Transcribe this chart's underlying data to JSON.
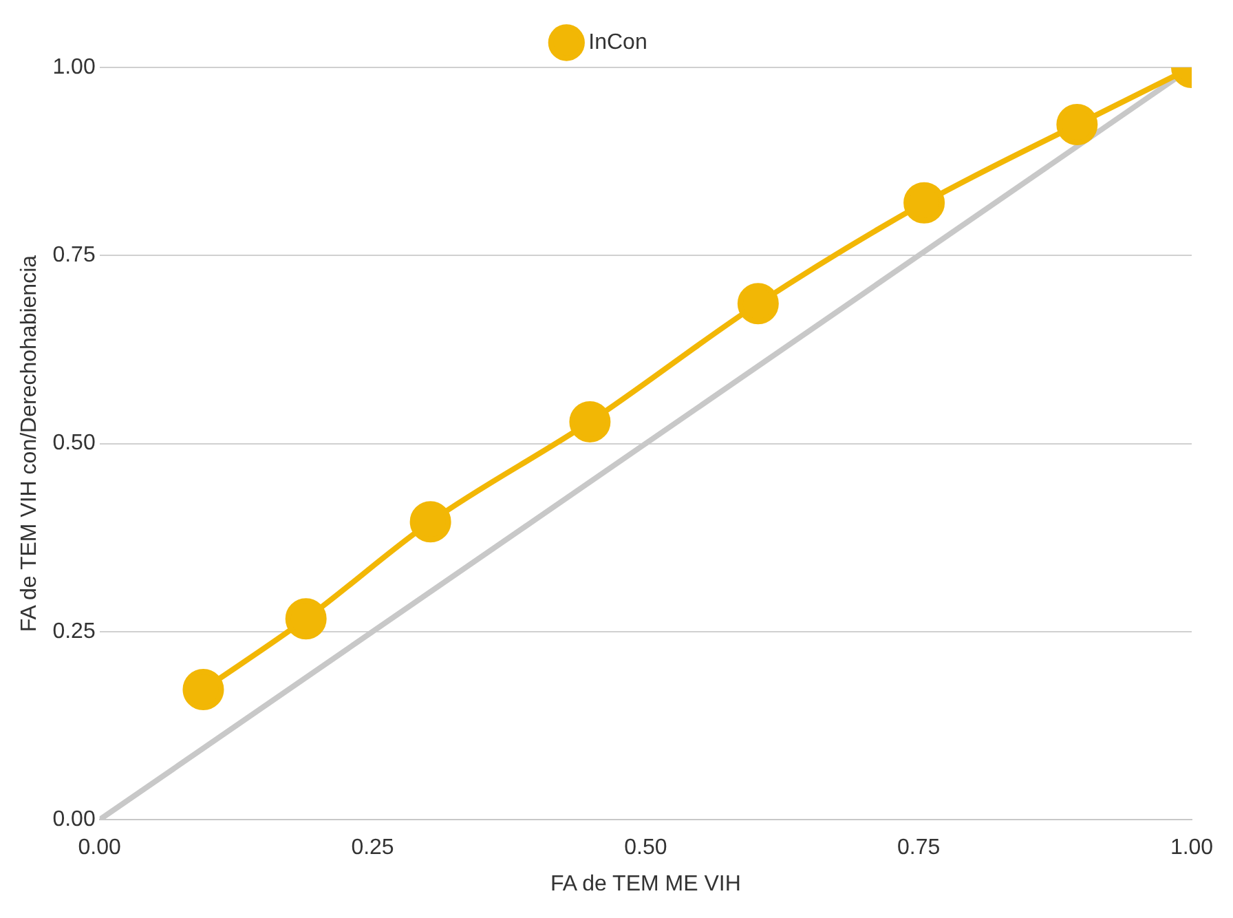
{
  "chart_data": {
    "type": "line",
    "xlabel": "FA de TEM ME VIH",
    "ylabel": "FA de TEM VIH con/Derechohabiencia",
    "series": [
      {
        "name": "InCon",
        "color": "#f2b705",
        "x": [
          0.095,
          0.189,
          0.303,
          0.449,
          0.603,
          0.755,
          0.895,
          1.0
        ],
        "values": [
          0.173,
          0.267,
          0.396,
          0.529,
          0.686,
          0.82,
          0.924,
          1.0
        ],
        "marker": "circle"
      },
      {
        "color": "#c8c8c8",
        "x": [
          0,
          1
        ],
        "values": [
          0,
          1
        ],
        "marker": "none"
      }
    ],
    "xlim": [
      0,
      1
    ],
    "xticks": [
      {
        "value": 0,
        "label": "0.00"
      },
      {
        "value": 0.25,
        "label": "0.25"
      },
      {
        "value": 0.5,
        "label": "0.50"
      },
      {
        "value": 0.75,
        "label": "0.75"
      },
      {
        "value": 1,
        "label": "1.00"
      }
    ],
    "ylim": [
      0,
      1
    ],
    "yticks": [
      {
        "value": 0,
        "label": "0.00"
      },
      {
        "value": 0.25,
        "label": "0.25"
      },
      {
        "value": 0.5,
        "label": "0.50"
      },
      {
        "value": 0.75,
        "label": "0.75"
      },
      {
        "value": 1,
        "label": "1.00"
      }
    ],
    "grid": "y",
    "legend": "top",
    "line_style": "solid"
  }
}
